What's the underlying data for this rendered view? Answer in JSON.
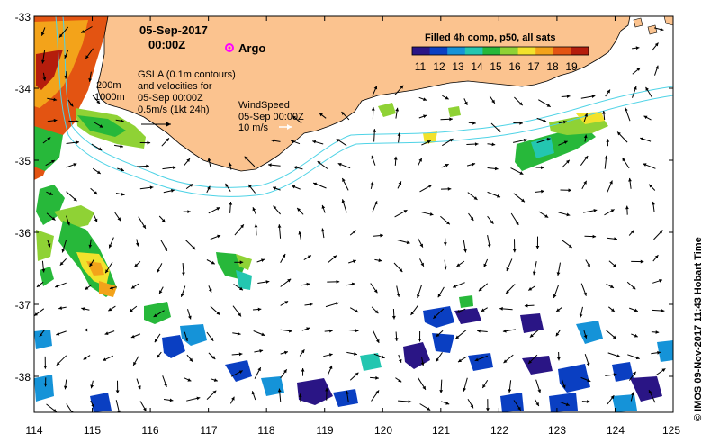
{
  "header": {
    "date": "05-Sep-2017",
    "time": "00:00Z",
    "argo_label": "Argo"
  },
  "annotations": {
    "isobath_200": "200m",
    "isobath_1000": "1000m",
    "gsla_line1": "GSLA (0.1m contours)",
    "gsla_line2": "and velocities for",
    "gsla_line3": "05-Sep 00:00Z",
    "gsla_scale": "0.5m/s (1kt 24h)",
    "wind_line1": "WindSpeed",
    "wind_line2": "05-Sep 00:00Z",
    "wind_scale": "10 m/s"
  },
  "colorbar": {
    "title": "Filled 4h comp, p50, all sats",
    "labels": [
      "11",
      "12",
      "13",
      "14",
      "15",
      "16",
      "17",
      "18",
      "19"
    ],
    "colors": [
      "#2a1585",
      "#0a3fc2",
      "#1593d8",
      "#23c6b0",
      "#27b83a",
      "#8fd235",
      "#f2e22c",
      "#f3a31a",
      "#e35412",
      "#b51d0c"
    ]
  },
  "axes": {
    "x_ticks": [
      "114",
      "115",
      "116",
      "117",
      "118",
      "119",
      "120",
      "121",
      "122",
      "123",
      "124",
      "125"
    ],
    "y_ticks": [
      "-33",
      "-34",
      "-35",
      "-36",
      "-37",
      "-38"
    ],
    "lon_range": [
      114,
      125
    ],
    "lat_range": [
      -38.5,
      -33
    ]
  },
  "credit": "© IMOS 09-Nov-2017 11:43 Hobart Time",
  "colors": {
    "land": "#fbc38f",
    "coast": "#000000",
    "isobath": "#4fd3e6",
    "arrow": "#000000",
    "argo": "#ff00ff"
  }
}
